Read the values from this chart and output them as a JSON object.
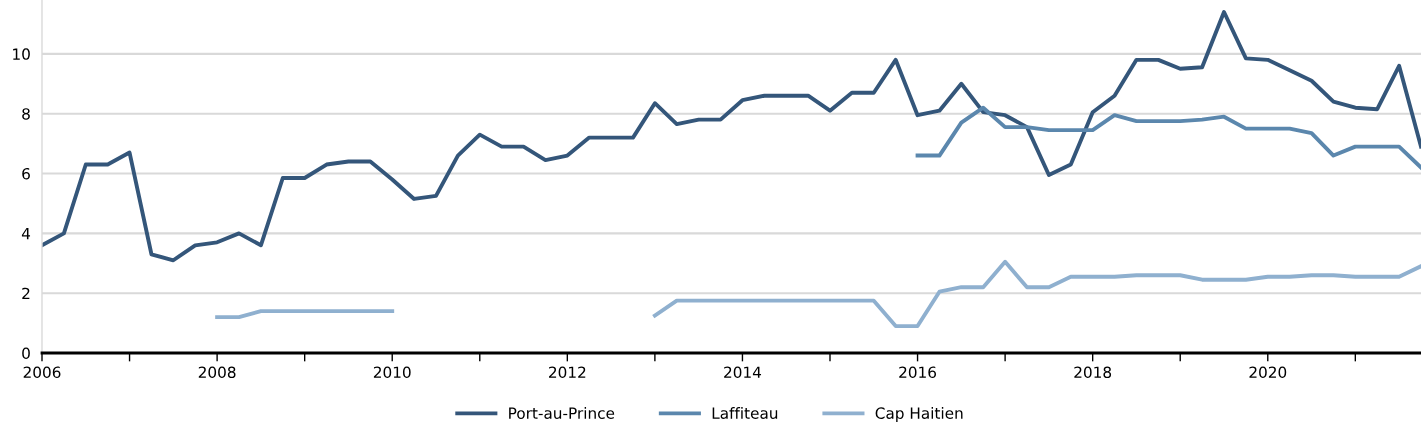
{
  "chart_data": {
    "type": "line",
    "x": [
      2006,
      2006.25,
      2006.5,
      2006.75,
      2007,
      2007.25,
      2007.5,
      2007.75,
      2008,
      2008.25,
      2008.5,
      2008.75,
      2009,
      2009.25,
      2009.5,
      2009.75,
      2010,
      2010.25,
      2010.5,
      2010.75,
      2011,
      2011.25,
      2011.5,
      2011.75,
      2012,
      2012.25,
      2012.5,
      2012.75,
      2013,
      2013.25,
      2013.5,
      2013.75,
      2014,
      2014.25,
      2014.5,
      2014.75,
      2015,
      2015.25,
      2015.5,
      2015.75,
      2016,
      2016.25,
      2016.5,
      2016.75,
      2017,
      2017.25,
      2017.5,
      2017.75,
      2018,
      2018.25,
      2018.5,
      2018.75,
      2019,
      2019.25,
      2019.5,
      2019.75,
      2020,
      2020.25,
      2020.5,
      2020.75,
      2021,
      2021.25,
      2021.5,
      2021.75
    ],
    "series": [
      {
        "name": "Port-au-Prince",
        "color": "#34567a",
        "values": [
          3.6,
          4.0,
          6.3,
          6.3,
          6.7,
          3.3,
          3.1,
          3.6,
          3.7,
          4.0,
          3.6,
          5.85,
          5.85,
          6.3,
          6.4,
          6.4,
          5.8,
          5.15,
          5.25,
          6.6,
          7.3,
          6.9,
          6.9,
          6.45,
          6.6,
          7.2,
          7.2,
          7.2,
          8.35,
          7.65,
          7.8,
          7.8,
          8.45,
          8.6,
          8.6,
          8.6,
          8.1,
          8.7,
          8.7,
          9.8,
          7.95,
          8.1,
          9.0,
          8.05,
          7.95,
          7.55,
          5.95,
          6.3,
          8.05,
          8.6,
          9.8,
          9.8,
          9.5,
          9.55,
          11.4,
          9.85,
          9.8,
          9.45,
          9.1,
          8.4,
          8.2,
          8.15,
          9.6,
          6.9
        ]
      },
      {
        "name": "Laffiteau",
        "color": "#5b87ad",
        "values": [
          null,
          null,
          null,
          null,
          null,
          null,
          null,
          null,
          null,
          null,
          null,
          null,
          null,
          null,
          null,
          null,
          null,
          null,
          null,
          null,
          null,
          null,
          null,
          null,
          null,
          null,
          null,
          null,
          null,
          null,
          null,
          null,
          null,
          null,
          null,
          null,
          null,
          null,
          null,
          null,
          6.6,
          6.6,
          7.7,
          8.2,
          7.55,
          7.55,
          7.45,
          7.45,
          7.45,
          7.95,
          7.75,
          7.75,
          7.75,
          7.8,
          7.9,
          7.5,
          7.5,
          7.5,
          7.35,
          6.6,
          6.9,
          6.9,
          6.9,
          6.2
        ]
      },
      {
        "name": "Cap Haitien",
        "color": "#8fb0cf",
        "values": [
          null,
          null,
          null,
          null,
          null,
          null,
          null,
          null,
          1.2,
          1.2,
          1.4,
          1.4,
          1.4,
          1.4,
          1.4,
          1.4,
          1.4,
          null,
          null,
          null,
          null,
          null,
          null,
          null,
          null,
          null,
          null,
          null,
          1.25,
          1.75,
          1.75,
          1.75,
          1.75,
          1.75,
          1.75,
          1.75,
          1.75,
          1.75,
          1.75,
          0.9,
          0.9,
          2.05,
          2.2,
          2.2,
          3.05,
          2.2,
          2.2,
          2.55,
          2.55,
          2.55,
          2.6,
          2.6,
          2.6,
          2.45,
          2.45,
          2.45,
          2.55,
          2.55,
          2.6,
          2.6,
          2.55,
          2.55,
          2.55,
          2.9
        ]
      }
    ],
    "xlim": [
      2006,
      2021.75
    ],
    "xticks": [
      2006,
      {
        "value": 2007,
        "label": null
      },
      2008,
      {
        "value": 2009,
        "label": null
      },
      2010,
      {
        "value": 2011,
        "label": null
      },
      2012,
      {
        "value": 2013,
        "label": null
      },
      2014,
      {
        "value": 2015,
        "label": null
      },
      2016,
      {
        "value": 2017,
        "label": null
      },
      2018,
      {
        "value": 2019,
        "label": null
      },
      2020,
      {
        "value": 2021,
        "label": null
      }
    ],
    "ylim": [
      0,
      11.8
    ],
    "yticks": [
      0,
      2,
      4,
      6,
      8,
      10
    ],
    "grid": "y",
    "legend": "bottom",
    "marker": "none",
    "line_style": "solid"
  }
}
